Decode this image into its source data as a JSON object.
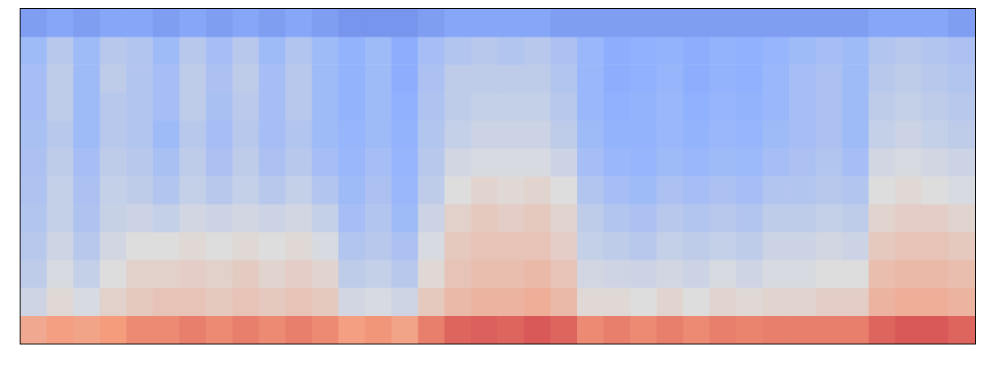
{
  "chart_data": {
    "type": "heatmap",
    "tick_labels": false,
    "grid": false,
    "color_range": [
      0,
      1
    ],
    "cells": [
      [
        0.2,
        0.3,
        0.32,
        0.32,
        0.33,
        0.34,
        0.35,
        0.36,
        0.38,
        0.4,
        0.45,
        0.7
      ],
      [
        0.22,
        0.38,
        0.4,
        0.4,
        0.38,
        0.4,
        0.42,
        0.42,
        0.45,
        0.48,
        0.52,
        0.74
      ],
      [
        0.2,
        0.3,
        0.3,
        0.3,
        0.3,
        0.32,
        0.34,
        0.35,
        0.38,
        0.42,
        0.48,
        0.72
      ],
      [
        0.22,
        0.38,
        0.4,
        0.38,
        0.38,
        0.4,
        0.42,
        0.43,
        0.46,
        0.5,
        0.55,
        0.75
      ],
      [
        0.22,
        0.36,
        0.36,
        0.36,
        0.36,
        0.38,
        0.4,
        0.44,
        0.5,
        0.55,
        0.58,
        0.78
      ],
      [
        0.2,
        0.3,
        0.32,
        0.32,
        0.3,
        0.33,
        0.36,
        0.42,
        0.5,
        0.55,
        0.6,
        0.78
      ],
      [
        0.22,
        0.38,
        0.4,
        0.4,
        0.38,
        0.4,
        0.42,
        0.46,
        0.52,
        0.56,
        0.6,
        0.8
      ],
      [
        0.2,
        0.32,
        0.34,
        0.33,
        0.32,
        0.34,
        0.38,
        0.44,
        0.5,
        0.55,
        0.58,
        0.78
      ],
      [
        0.22,
        0.38,
        0.4,
        0.39,
        0.38,
        0.4,
        0.42,
        0.46,
        0.52,
        0.57,
        0.6,
        0.8
      ],
      [
        0.2,
        0.3,
        0.32,
        0.32,
        0.32,
        0.34,
        0.38,
        0.44,
        0.5,
        0.54,
        0.58,
        0.78
      ],
      [
        0.22,
        0.36,
        0.38,
        0.38,
        0.36,
        0.38,
        0.42,
        0.46,
        0.52,
        0.56,
        0.6,
        0.8
      ],
      [
        0.2,
        0.3,
        0.3,
        0.3,
        0.3,
        0.32,
        0.36,
        0.42,
        0.48,
        0.54,
        0.58,
        0.78
      ],
      [
        0.18,
        0.26,
        0.26,
        0.26,
        0.27,
        0.28,
        0.3,
        0.32,
        0.36,
        0.4,
        0.46,
        0.74
      ],
      [
        0.18,
        0.3,
        0.3,
        0.3,
        0.3,
        0.32,
        0.34,
        0.36,
        0.38,
        0.42,
        0.48,
        0.76
      ],
      [
        0.18,
        0.24,
        0.24,
        0.25,
        0.26,
        0.27,
        0.28,
        0.3,
        0.34,
        0.38,
        0.45,
        0.72
      ],
      [
        0.2,
        0.32,
        0.34,
        0.35,
        0.36,
        0.38,
        0.4,
        0.44,
        0.48,
        0.52,
        0.58,
        0.8
      ],
      [
        0.22,
        0.36,
        0.4,
        0.4,
        0.42,
        0.46,
        0.5,
        0.55,
        0.58,
        0.6,
        0.64,
        0.84
      ],
      [
        0.22,
        0.38,
        0.4,
        0.42,
        0.44,
        0.48,
        0.54,
        0.58,
        0.6,
        0.62,
        0.66,
        0.85
      ],
      [
        0.22,
        0.36,
        0.4,
        0.42,
        0.44,
        0.48,
        0.52,
        0.56,
        0.6,
        0.62,
        0.66,
        0.84
      ],
      [
        0.22,
        0.38,
        0.4,
        0.42,
        0.44,
        0.48,
        0.54,
        0.58,
        0.6,
        0.64,
        0.68,
        0.86
      ],
      [
        0.2,
        0.34,
        0.36,
        0.38,
        0.4,
        0.44,
        0.5,
        0.54,
        0.56,
        0.6,
        0.64,
        0.84
      ],
      [
        0.2,
        0.28,
        0.28,
        0.28,
        0.3,
        0.32,
        0.36,
        0.4,
        0.42,
        0.46,
        0.52,
        0.78
      ],
      [
        0.2,
        0.24,
        0.24,
        0.25,
        0.26,
        0.28,
        0.32,
        0.36,
        0.4,
        0.45,
        0.52,
        0.8
      ],
      [
        0.2,
        0.25,
        0.25,
        0.26,
        0.26,
        0.27,
        0.3,
        0.34,
        0.38,
        0.44,
        0.5,
        0.78
      ],
      [
        0.2,
        0.26,
        0.27,
        0.28,
        0.28,
        0.3,
        0.34,
        0.38,
        0.42,
        0.46,
        0.54,
        0.8
      ],
      [
        0.2,
        0.24,
        0.24,
        0.25,
        0.26,
        0.28,
        0.32,
        0.36,
        0.4,
        0.44,
        0.5,
        0.78
      ],
      [
        0.2,
        0.26,
        0.26,
        0.27,
        0.28,
        0.3,
        0.34,
        0.38,
        0.42,
        0.48,
        0.54,
        0.8
      ],
      [
        0.2,
        0.25,
        0.25,
        0.26,
        0.27,
        0.29,
        0.32,
        0.36,
        0.4,
        0.45,
        0.52,
        0.79
      ],
      [
        0.2,
        0.27,
        0.28,
        0.28,
        0.3,
        0.32,
        0.36,
        0.4,
        0.44,
        0.48,
        0.54,
        0.8
      ],
      [
        0.2,
        0.3,
        0.32,
        0.32,
        0.32,
        0.34,
        0.36,
        0.4,
        0.44,
        0.48,
        0.54,
        0.8
      ],
      [
        0.2,
        0.32,
        0.34,
        0.34,
        0.34,
        0.36,
        0.38,
        0.42,
        0.46,
        0.5,
        0.56,
        0.8
      ],
      [
        0.2,
        0.3,
        0.3,
        0.3,
        0.3,
        0.32,
        0.36,
        0.4,
        0.44,
        0.5,
        0.56,
        0.8
      ],
      [
        0.22,
        0.36,
        0.38,
        0.4,
        0.42,
        0.46,
        0.5,
        0.54,
        0.58,
        0.62,
        0.66,
        0.84
      ],
      [
        0.22,
        0.38,
        0.4,
        0.42,
        0.44,
        0.48,
        0.52,
        0.56,
        0.6,
        0.64,
        0.68,
        0.86
      ],
      [
        0.22,
        0.36,
        0.38,
        0.4,
        0.42,
        0.46,
        0.5,
        0.56,
        0.6,
        0.64,
        0.68,
        0.86
      ],
      [
        0.2,
        0.34,
        0.36,
        0.38,
        0.4,
        0.44,
        0.48,
        0.54,
        0.58,
        0.62,
        0.66,
        0.84
      ]
    ]
  }
}
